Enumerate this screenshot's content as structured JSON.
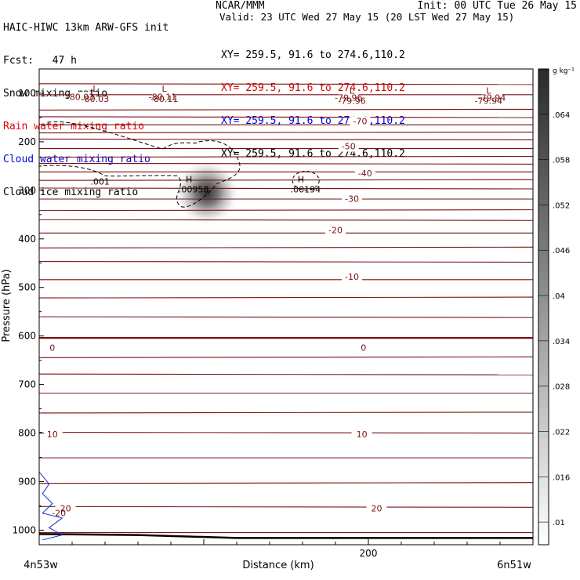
{
  "header": {
    "left": [
      {
        "text": "HAIC-HIWC 13km ARW-GFS init",
        "color": "#000000"
      },
      {
        "text": "Fcst:   47 h",
        "color": "#000000"
      },
      {
        "text": "Snow mixing ratio",
        "color": "#000000"
      },
      {
        "text": "Rain water mixing ratio",
        "color": "#e00000"
      },
      {
        "text": "Cloud water mixing ratio",
        "color": "#0000e0"
      },
      {
        "text": "Cloud ice mixing ratio",
        "color": "#000000"
      }
    ],
    "org": "NCAR/MMM",
    "init": "Init: 00 UTC Tue 26 May 15",
    "valid": "Valid: 23 UTC Wed 27 May 15 (20 LST Wed 27 May 15)",
    "xy": [
      {
        "text": "XY= 259.5, 91.6 to 274.6,110.2",
        "color": "#000000"
      },
      {
        "text": "XY= 259.5, 91.6 to 274.6,110.2",
        "color": "#e00000"
      },
      {
        "text": "XY= 259.5, 91.6 to 274.6,110.2",
        "color": "#0000e0"
      },
      {
        "text": "XY= 259.5, 91.6 to 274.6,110.2",
        "color": "#000000"
      }
    ]
  },
  "chart_data": {
    "type": "cross-section contour",
    "xlabel": "Distance (km)",
    "ylabel": "Pressure (hPa)",
    "x_ticks": [
      200
    ],
    "x_end_labels": {
      "left": "4n53w",
      "right": "6n51w"
    },
    "y_ticks": [
      100,
      200,
      300,
      400,
      500,
      600,
      700,
      800,
      900,
      1000
    ],
    "xlim": [
      0,
      300
    ],
    "ylim": [
      1030,
      50
    ],
    "colorbar": {
      "unit": "g kg⁻¹",
      "ticks": [
        ".064",
        ".058",
        ".052",
        ".046",
        ".04",
        ".034",
        ".028",
        ".022",
        ".016",
        ".01"
      ]
    },
    "temperature_labels": [
      {
        "label": "-80.03",
        "x": 25,
        "p": 107
      },
      {
        "label": "-80.11",
        "x": 75,
        "p": 107
      },
      {
        "label": "-79.96",
        "x": 188,
        "p": 109
      },
      {
        "label": "-79.94",
        "x": 275,
        "p": 109
      },
      {
        "label": "-70",
        "x": 195,
        "p": 157
      },
      {
        "label": "-50",
        "x": 188,
        "p": 209
      },
      {
        "label": "-40",
        "x": 198,
        "p": 265
      },
      {
        "label": "-30",
        "x": 190,
        "p": 317
      },
      {
        "label": "-20",
        "x": 180,
        "p": 382
      },
      {
        "label": "-10",
        "x": 190,
        "p": 478
      },
      {
        "label": "0",
        "x": 8,
        "p": 624
      },
      {
        "label": "0",
        "x": 197,
        "p": 624
      },
      {
        "label": "10",
        "x": 8,
        "p": 802
      },
      {
        "label": "10",
        "x": 196,
        "p": 802
      },
      {
        "label": "20",
        "x": 16,
        "p": 955
      },
      {
        "label": "20",
        "x": 205,
        "p": 955
      }
    ],
    "extrema": [
      {
        "type": "L",
        "label": "-80.03",
        "x": 34,
        "p": 97
      },
      {
        "type": "L",
        "label": "-80.11",
        "x": 76,
        "p": 97
      },
      {
        "type": "L",
        "label": "-79.96",
        "x": 190,
        "p": 101
      },
      {
        "type": "L",
        "label": "-79.94",
        "x": 273,
        "p": 101
      },
      {
        "type": "H",
        "label": ".00958",
        "x": 91,
        "p": 283
      },
      {
        "type": "H",
        "label": ".00194",
        "x": 159,
        "p": 283
      }
    ],
    "cloud_ice_contour_label": ".001",
    "series": [
      {
        "name": "Cloud ice mixing ratio",
        "peak": 0.00958,
        "max_at": {
          "x": 100,
          "p": 305
        }
      },
      {
        "name": "Snow mixing ratio",
        "peak": 0.064,
        "max_at": {
          "x": 100,
          "p": 310
        }
      },
      {
        "name": "Cloud water mixing ratio",
        "label": "-20"
      }
    ]
  }
}
